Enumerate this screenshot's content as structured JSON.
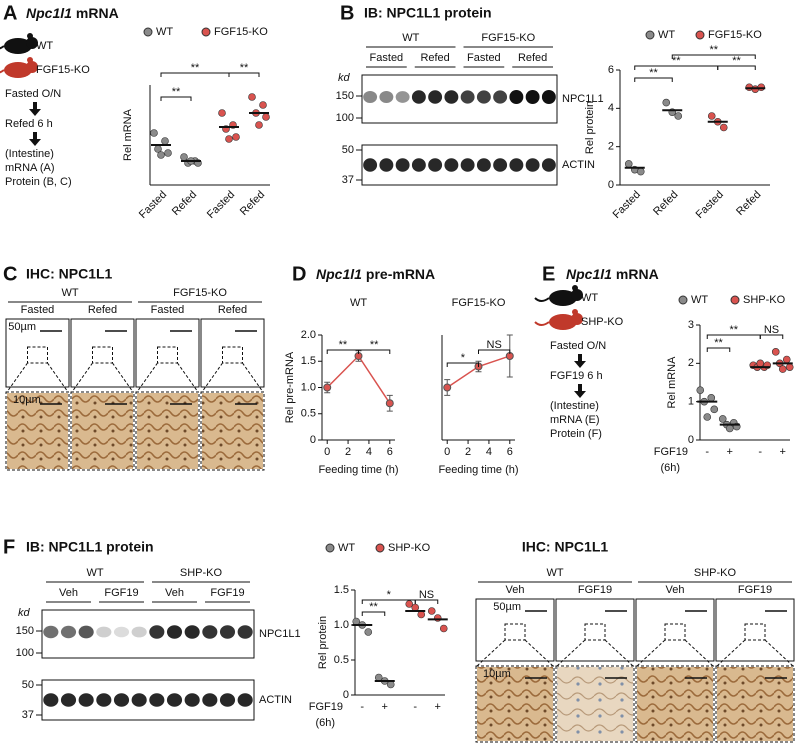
{
  "panels": {
    "A": {
      "letter": "A",
      "title_gene": "Npc1l1",
      "title_rest": "mRNA",
      "strains": [
        "WT",
        "FGF15-KO"
      ],
      "steps": [
        "Fasted O/N",
        "Refed 6 h",
        "(Intestine)",
        "mRNA (A)",
        "Protein (B, C)"
      ]
    },
    "B": {
      "letter": "B",
      "title": "IB: NPC1L1 protein",
      "groups": [
        "WT",
        "FGF15-KO"
      ],
      "lanes": [
        "Fasted",
        "Refed",
        "Fasted",
        "Refed"
      ],
      "unit": "kd",
      "markers": [
        "150",
        "100",
        "50",
        "37"
      ],
      "bands": [
        "NPC1L1",
        "ACTIN"
      ]
    },
    "C": {
      "letter": "C",
      "title": "IHC: NPC1L1",
      "groups": [
        "WT",
        "FGF15-KO"
      ],
      "lanes": [
        "Fasted",
        "Refed",
        "Fasted",
        "Refed"
      ],
      "scales": [
        "50µm",
        "10µm"
      ]
    },
    "D": {
      "letter": "D",
      "title_gene": "Npc1l1",
      "title_rest": "pre-mRNA"
    },
    "E": {
      "letter": "E",
      "title_gene": "Npc1l1",
      "title_rest": "mRNA",
      "strains": [
        "WT",
        "SHP-KO"
      ],
      "steps": [
        "Fasted O/N",
        "FGF19 6 h",
        "(Intestine)",
        "mRNA (E)",
        "Protein (F)"
      ]
    },
    "F": {
      "letter": "F",
      "title": "IB: NPC1L1 protein",
      "groups": [
        "WT",
        "SHP-KO"
      ],
      "lanes": [
        "Veh",
        "FGF19",
        "Veh",
        "FGF19"
      ],
      "unit": "kd",
      "markers": [
        "150",
        "100",
        "50",
        "37"
      ],
      "bands": [
        "NPC1L1",
        "ACTIN"
      ]
    },
    "F_ihc": {
      "title": "IHC: NPC1L1",
      "groups": [
        "WT",
        "SHP-KO"
      ],
      "lanes": [
        "Veh",
        "FGF19",
        "Veh",
        "FGF19"
      ],
      "scales": [
        "50µm",
        "10µm"
      ]
    }
  },
  "chart_data": [
    {
      "type": "dot",
      "ylabel": "Rel mRNA",
      "categories": [
        "Fasted",
        "Refed",
        "Fasted",
        "Refed"
      ],
      "ylim": [
        0,
        2.5
      ],
      "series": [
        {
          "name": "WT",
          "color": "#8a8a8a",
          "points": [
            [
              1.3,
              1.1,
              0.9,
              0.8,
              0.75
            ],
            [
              0.7,
              0.6,
              0.55,
              0.55,
              0.6
            ]
          ],
          "means": [
            1.0,
            0.6
          ]
        },
        {
          "name": "FGF15-KO",
          "color": "#d9534f",
          "points": [
            [
              1.8,
              1.5,
              1.4,
              1.2,
              1.15
            ],
            [
              2.2,
              2.0,
              1.8,
              1.7,
              1.5
            ]
          ],
          "means": [
            1.45,
            1.8
          ]
        }
      ],
      "significance": [
        "**",
        "**",
        "**"
      ]
    },
    {
      "type": "dot",
      "ylabel": "Rel protein",
      "categories": [
        "Fasted",
        "Refed",
        "Fasted",
        "Refed"
      ],
      "ylim": [
        0,
        6
      ],
      "yticks": [
        0,
        2,
        4,
        6
      ],
      "series": [
        {
          "name": "WT",
          "color": "#8a8a8a",
          "points": [
            [
              1.1,
              0.8,
              0.7
            ],
            [
              4.3,
              3.8,
              3.6
            ]
          ],
          "means": [
            0.9,
            3.9
          ]
        },
        {
          "name": "FGF15-KO",
          "color": "#d9534f",
          "points": [
            [
              3.6,
              3.3,
              3.0
            ],
            [
              5.1,
              5.0,
              5.1
            ]
          ],
          "means": [
            3.3,
            5.05
          ]
        }
      ],
      "significance": [
        "**",
        "**",
        "**",
        "**"
      ]
    },
    {
      "type": "line",
      "subtitle": "WT",
      "xlabel": "Feeding time (h)",
      "ylabel": "Rel pre-mRNA",
      "color": "#d9534f",
      "x": [
        0,
        3,
        6
      ],
      "values": [
        1.0,
        1.6,
        0.7
      ],
      "errors": [
        0.1,
        0.1,
        0.15
      ],
      "xlim": [
        -0.5,
        6.5
      ],
      "xticks": [
        0,
        2,
        4,
        6
      ],
      "ylim": [
        0,
        2
      ],
      "yticks": [
        0,
        0.5,
        {
          "value": 1,
          "label": "1.0"
        },
        1.5,
        {
          "value": 2,
          "label": "2.0"
        }
      ],
      "significance": [
        "**",
        "**"
      ]
    },
    {
      "type": "line",
      "subtitle": "FGF15-KO",
      "xlabel": "Feeding time (h)",
      "color": "#d9534f",
      "x": [
        0,
        3,
        6
      ],
      "values": [
        1.0,
        1.4,
        1.6
      ],
      "errors": [
        0.15,
        0.1,
        0.4
      ],
      "xlim": [
        -0.5,
        6.5
      ],
      "xticks": [
        0,
        2,
        4,
        6
      ],
      "ylim": [
        0,
        2
      ],
      "significance": [
        "*",
        "NS"
      ]
    },
    {
      "type": "dot",
      "ylabel": "Rel mRNA",
      "xlabel": "FGF19",
      "xlabel_sub": "(6h)",
      "categories": [
        "-",
        "+",
        "-",
        "+"
      ],
      "ylim": [
        0,
        3
      ],
      "yticks": [
        0,
        1,
        2,
        3
      ],
      "series": [
        {
          "name": "WT",
          "color": "#8a8a8a",
          "points": [
            [
              1.3,
              1.1,
              1.0,
              0.8,
              0.6
            ],
            [
              0.55,
              0.45,
              0.4,
              0.35,
              0.3
            ]
          ],
          "means": [
            1.0,
            0.4
          ]
        },
        {
          "name": "SHP-KO",
          "color": "#d9534f",
          "points": [
            [
              1.95,
              1.9,
              1.9,
              1.95,
              2.0
            ],
            [
              2.3,
              2.1,
              2.0,
              1.9,
              1.85
            ]
          ],
          "means": [
            1.9,
            2.0
          ]
        }
      ],
      "significance": [
        "**",
        "**",
        "NS"
      ]
    },
    {
      "type": "dot",
      "ylabel": "Rel protein",
      "xlabel": "FGF19",
      "xlabel_sub": "(6h)",
      "categories": [
        "-",
        "+",
        "-",
        "+"
      ],
      "ylim": [
        0,
        1.5
      ],
      "yticks": [
        0,
        0.5,
        {
          "value": 1,
          "label": "1.0"
        },
        1.5
      ],
      "series": [
        {
          "name": "WT",
          "color": "#8a8a8a",
          "points": [
            [
              1.05,
              1.0,
              0.9
            ],
            [
              0.25,
              0.2,
              0.15
            ]
          ],
          "means": [
            1.0,
            0.2
          ]
        },
        {
          "name": "SHP-KO",
          "color": "#d9534f",
          "points": [
            [
              1.3,
              1.25,
              1.15
            ],
            [
              1.2,
              1.1,
              0.95
            ]
          ],
          "means": [
            1.2,
            1.08
          ]
        }
      ],
      "significance": [
        "**",
        "*",
        "NS"
      ]
    }
  ]
}
